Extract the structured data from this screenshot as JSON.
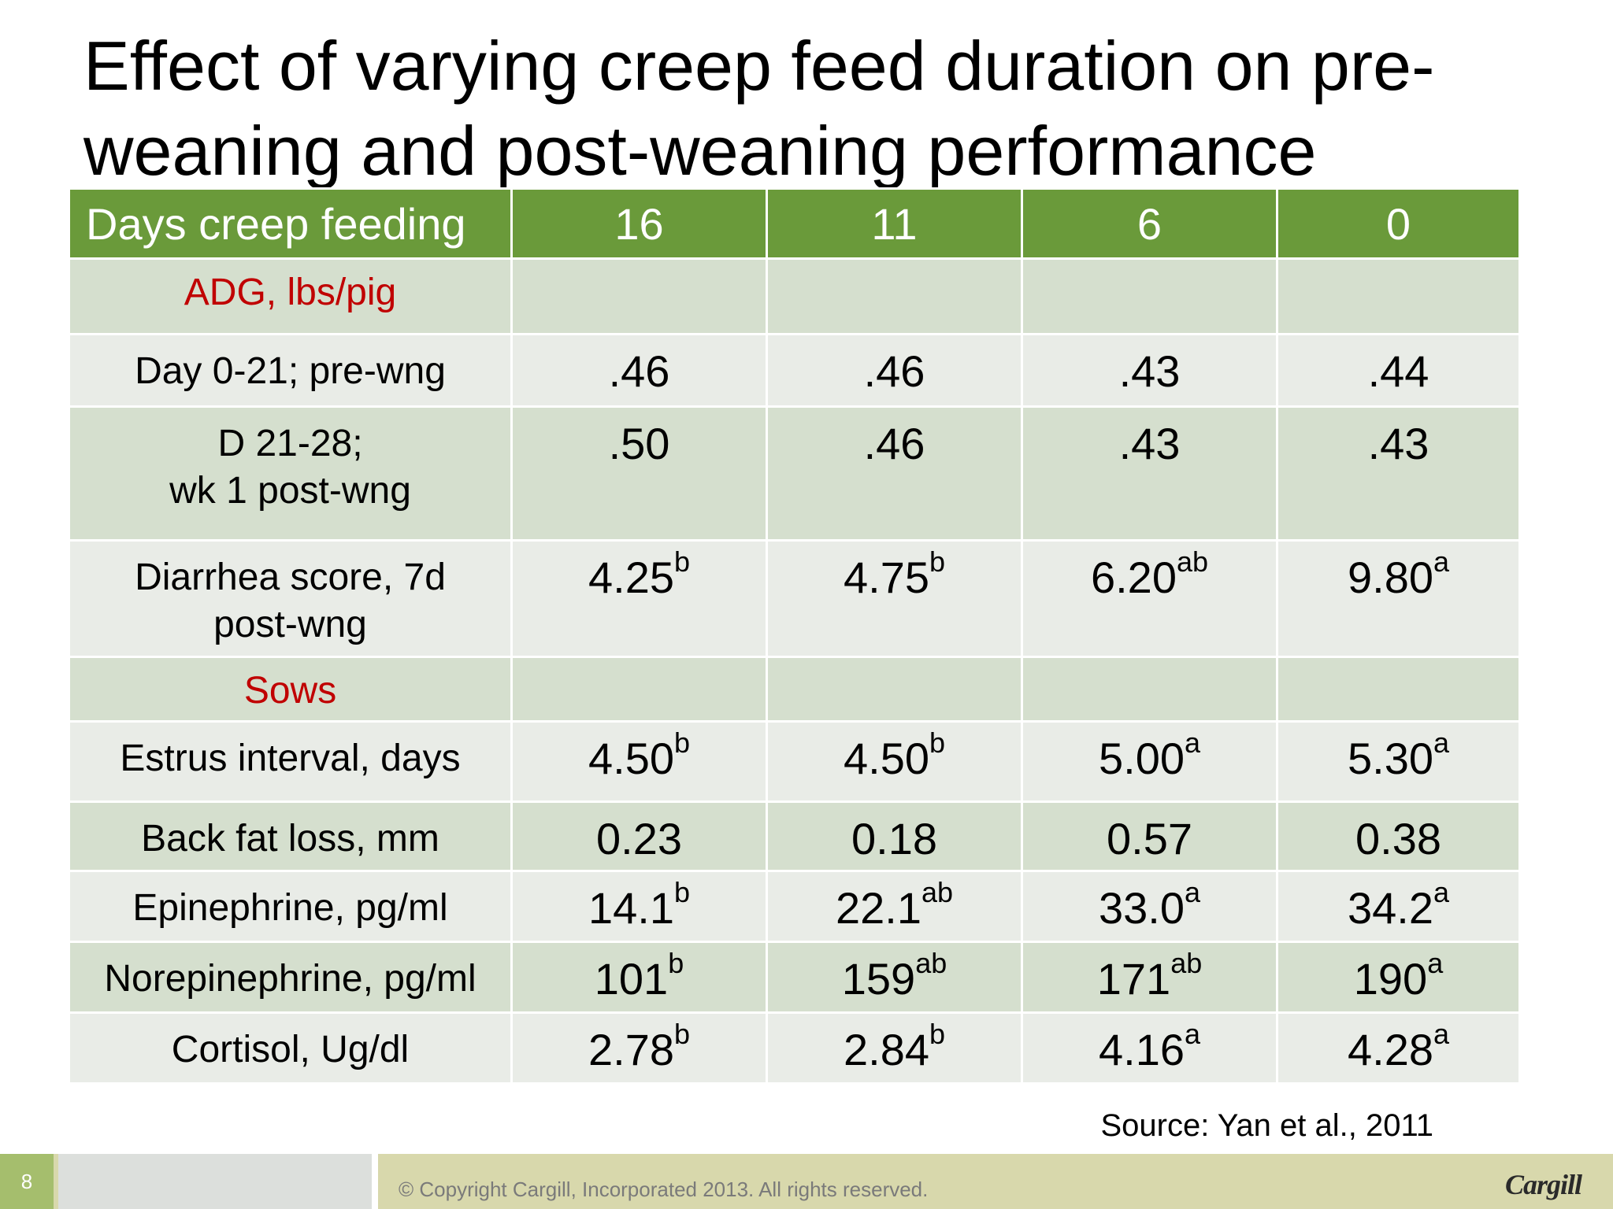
{
  "title": "Effect of varying creep feed duration on pre-weaning and post-weaning performance",
  "table": {
    "header": [
      "Days creep feeding",
      "16",
      "11",
      "6",
      "0"
    ],
    "rows": [
      {
        "type": "section",
        "label": "ADG, lbs/pig",
        "values": [
          {
            "v": "",
            "s": ""
          },
          {
            "v": "",
            "s": ""
          },
          {
            "v": "",
            "s": ""
          },
          {
            "v": "",
            "s": ""
          }
        ]
      },
      {
        "type": "row",
        "label": "Day 0-21; pre-wng",
        "values": [
          {
            "v": ".46",
            "s": ""
          },
          {
            "v": ".46",
            "s": ""
          },
          {
            "v": ".43",
            "s": ""
          },
          {
            "v": ".44",
            "s": ""
          }
        ]
      },
      {
        "type": "row",
        "label": "D 21-28;\nwk 1 post-wng",
        "values": [
          {
            "v": ".50",
            "s": ""
          },
          {
            "v": ".46",
            "s": ""
          },
          {
            "v": ".43",
            "s": ""
          },
          {
            "v": ".43",
            "s": ""
          }
        ]
      },
      {
        "type": "row",
        "label": "Diarrhea score, 7d\npost-wng",
        "values": [
          {
            "v": "4.25",
            "s": "b"
          },
          {
            "v": "4.75",
            "s": "b"
          },
          {
            "v": "6.20",
            "s": "ab"
          },
          {
            "v": "9.80",
            "s": "a"
          }
        ]
      },
      {
        "type": "section",
        "label": "Sows",
        "values": [
          {
            "v": "",
            "s": ""
          },
          {
            "v": "",
            "s": ""
          },
          {
            "v": "",
            "s": ""
          },
          {
            "v": "",
            "s": ""
          }
        ]
      },
      {
        "type": "row",
        "label": "Estrus interval, days",
        "values": [
          {
            "v": "4.50",
            "s": "b"
          },
          {
            "v": "4.50",
            "s": "b"
          },
          {
            "v": "5.00",
            "s": "a"
          },
          {
            "v": "5.30",
            "s": "a"
          }
        ]
      },
      {
        "type": "row",
        "label": "Back fat loss, mm",
        "values": [
          {
            "v": "0.23",
            "s": ""
          },
          {
            "v": "0.18",
            "s": ""
          },
          {
            "v": "0.57",
            "s": ""
          },
          {
            "v": "0.38",
            "s": ""
          }
        ]
      },
      {
        "type": "row",
        "label": "Epinephrine, pg/ml",
        "values": [
          {
            "v": "14.1",
            "s": "b"
          },
          {
            "v": "22.1",
            "s": "ab"
          },
          {
            "v": "33.0",
            "s": "a"
          },
          {
            "v": "34.2",
            "s": "a"
          }
        ]
      },
      {
        "type": "row",
        "label": "Norepinephrine, pg/ml",
        "values": [
          {
            "v": "101",
            "s": "b"
          },
          {
            "v": "159",
            "s": "ab"
          },
          {
            "v": "171",
            "s": "ab"
          },
          {
            "v": "190",
            "s": "a"
          }
        ]
      },
      {
        "type": "row",
        "label": "Cortisol, Ug/dl",
        "values": [
          {
            "v": "2.78",
            "s": "b"
          },
          {
            "v": "2.84",
            "s": "b"
          },
          {
            "v": "4.16",
            "s": "a"
          },
          {
            "v": "4.28",
            "s": "a"
          }
        ]
      }
    ]
  },
  "source": "Source: Yan et al., 2011",
  "footer": {
    "page_number": "8",
    "copyright": "© Copyright Cargill, Incorporated 2013. All rights reserved.",
    "logo_text": "Cargill"
  },
  "colors": {
    "header_green": "#6a9a3a",
    "section_red": "#c00000",
    "row_dark": "#d5dfce",
    "row_light": "#e9ece7",
    "footer_band": "#d8d8ac"
  }
}
